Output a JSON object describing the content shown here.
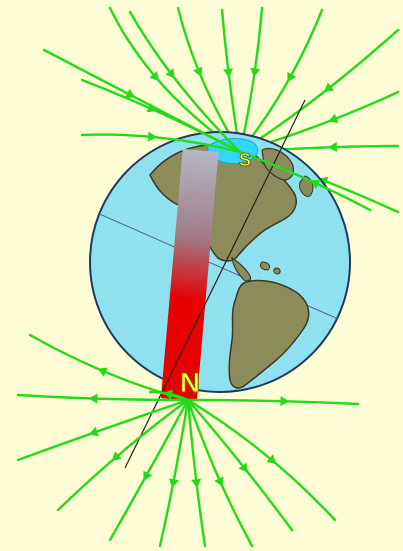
{
  "diagram": {
    "pole_labels": {
      "south": "S",
      "north": "N"
    },
    "colors": {
      "background": "#fffdd6",
      "ocean": "#8fe1f0",
      "globe_outline": "#1f3a5c",
      "land": "#8c8b5a",
      "land_outline": "#3c3a26",
      "ice": "#33d6ff",
      "field_lines": "#26d91a",
      "magnet_top": "#b4b8c4",
      "magnet_bottom": "#e60000",
      "label": "#ffff33",
      "axis": "#222222"
    }
  }
}
